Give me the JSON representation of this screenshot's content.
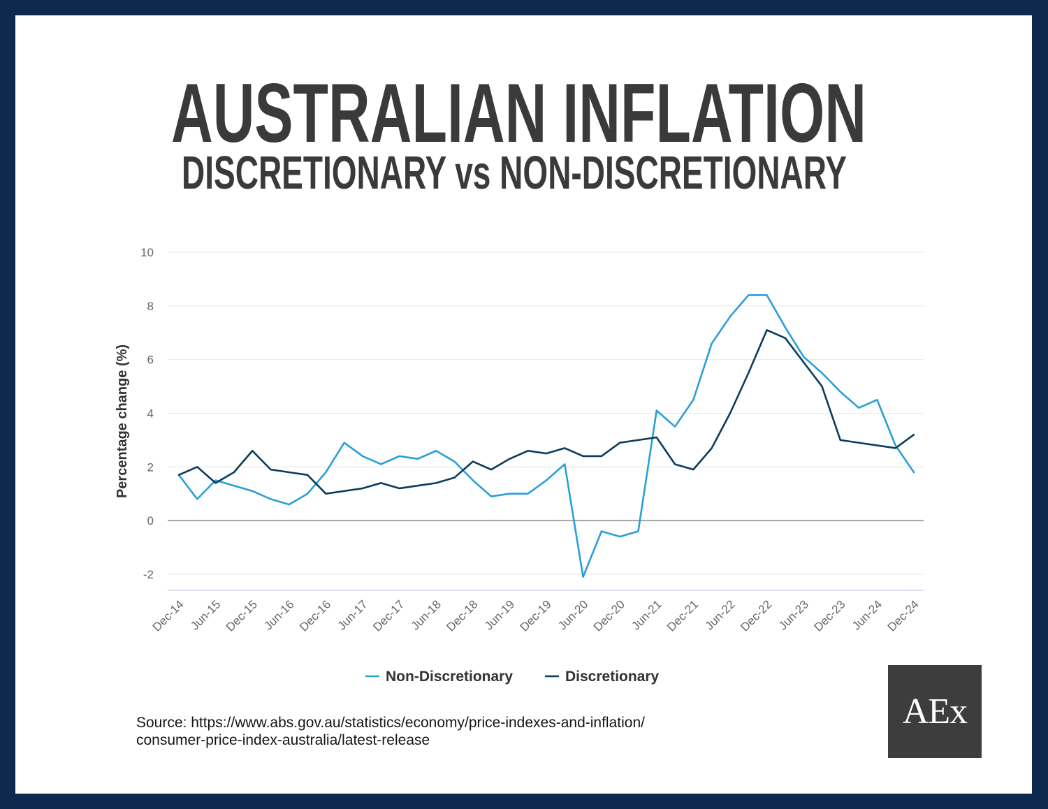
{
  "colors": {
    "border": "#0d2a4e",
    "title": "#3a3a3a",
    "logo_bg": "#3d3d3d"
  },
  "chart_data": {
    "type": "line",
    "title": "AUSTRALIAN INFLATION",
    "subtitle": "DISCRETIONARY vs NON-DISCRETIONARY",
    "ylabel": "Percentage change (%)",
    "x_ticks": [
      "Dec-14",
      "Jun-15",
      "Dec-15",
      "Jun-16",
      "Dec-16",
      "Jun-17",
      "Dec-17",
      "Jun-18",
      "Dec-18",
      "Jun-19",
      "Dec-19",
      "Jun-20",
      "Dec-20",
      "Jun-21",
      "Dec-21",
      "Jun-22",
      "Dec-22",
      "Jun-23",
      "Dec-23",
      "Jun-24",
      "Dec-24"
    ],
    "y_ticks": [
      10,
      8,
      6,
      4,
      2,
      0,
      -2
    ],
    "ylim": [
      -2.6,
      10
    ],
    "grid": true,
    "legend": "bottom",
    "series": [
      {
        "name": "Non-Discretionary",
        "color": "#2a9fd6",
        "values": [
          1.7,
          0.8,
          1.5,
          1.3,
          1.1,
          0.8,
          0.6,
          1.0,
          1.8,
          2.9,
          2.4,
          2.1,
          2.4,
          2.3,
          2.6,
          2.2,
          1.5,
          0.9,
          1.0,
          1.0,
          1.5,
          2.1,
          -2.1,
          -0.4,
          -0.6,
          -0.4,
          4.1,
          3.5,
          4.5,
          6.6,
          7.6,
          8.4,
          8.4,
          7.2,
          6.1,
          5.5,
          4.8,
          4.2,
          4.5,
          2.8,
          1.8
        ]
      },
      {
        "name": "Discretionary",
        "color": "#0b3b5c",
        "values": [
          1.7,
          2.0,
          1.4,
          1.8,
          2.6,
          1.9,
          1.8,
          1.7,
          1.0,
          1.1,
          1.2,
          1.4,
          1.2,
          1.3,
          1.4,
          1.6,
          2.2,
          1.9,
          2.3,
          2.6,
          2.5,
          2.7,
          2.4,
          2.4,
          2.9,
          3.0,
          3.1,
          2.1,
          1.9,
          2.7,
          4.0,
          5.5,
          7.1,
          6.8,
          5.9,
          5.0,
          3.0,
          2.9,
          2.8,
          2.7,
          3.2
        ]
      }
    ]
  },
  "source": {
    "line1": "Source: https://www.abs.gov.au/statistics/economy/price-indexes-and-inflation/",
    "line2": "consumer-price-index-australia/latest-release"
  },
  "logo": {
    "text": "AEx"
  }
}
